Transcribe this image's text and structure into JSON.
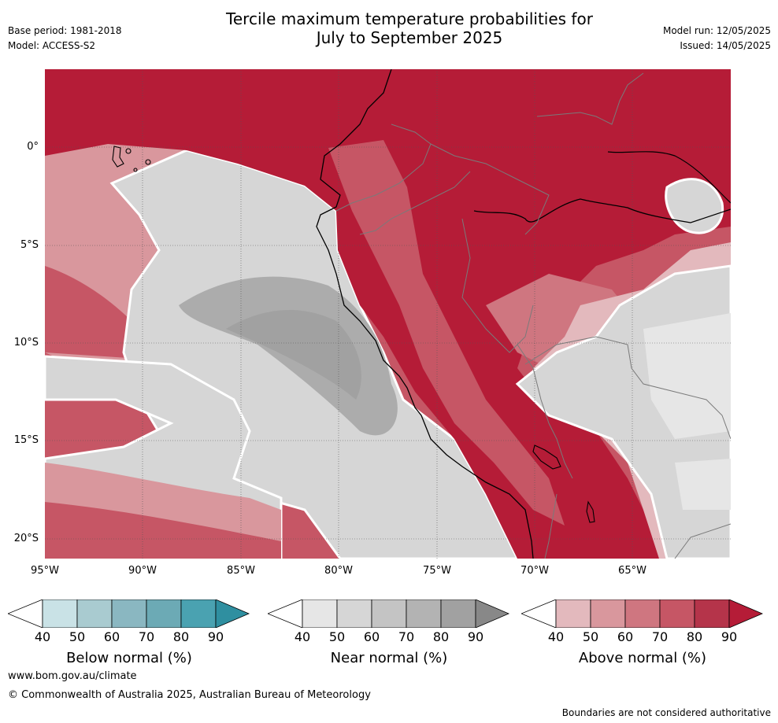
{
  "header": {
    "title_line1": "Tercile maximum temperature probabilities for",
    "title_line2": "July to September 2025",
    "base_period": "Base period: 1981-2018",
    "model": "Model: ACCESS-S2",
    "model_run": "Model run: 12/05/2025",
    "issued": "Issued: 14/05/2025"
  },
  "map": {
    "lat_labels": [
      "0°",
      "5°S",
      "10°S",
      "15°S",
      "20°S"
    ],
    "lon_labels": [
      "95°W",
      "90°W",
      "85°W",
      "80°W",
      "75°W",
      "70°W",
      "65°W"
    ],
    "colors": {
      "above_deep": "#b51c37",
      "above_70": "#c65665",
      "above_60": "#cf7680",
      "above_50": "#d9979d",
      "above_40": "#e3b9bd",
      "near_40": "#e6e6e6",
      "near_50": "#d6d6d6",
      "near_60": "#c4c4c4",
      "near_70": "#acacac",
      "country_border": "#7a7a7a",
      "coastline": "#000000"
    }
  },
  "colorbars": {
    "ticks": [
      "40",
      "50",
      "60",
      "70",
      "80",
      "90"
    ],
    "below": {
      "title": "Below normal (%)",
      "colors": [
        "#ffffff",
        "#c9e2e6",
        "#a9cbd0",
        "#8ab7c1",
        "#6caab5",
        "#4aa2b1",
        "#2f8fa0"
      ]
    },
    "near": {
      "title": "Near normal (%)",
      "colors": [
        "#ffffff",
        "#e6e6e6",
        "#d6d6d6",
        "#c4c4c4",
        "#b3b3b3",
        "#a1a1a1",
        "#888888"
      ]
    },
    "above": {
      "title": "Above normal (%)",
      "colors": [
        "#ffffff",
        "#e3b9bd",
        "#d9979d",
        "#cf7680",
        "#c65665",
        "#b5344a",
        "#b51c37"
      ]
    }
  },
  "footer": {
    "url": "www.bom.gov.au/climate",
    "copyright": "© Commonwealth of Australia 2025, Australian Bureau of Meteorology",
    "boundaries_note": "Boundaries are not considered authoritative"
  }
}
